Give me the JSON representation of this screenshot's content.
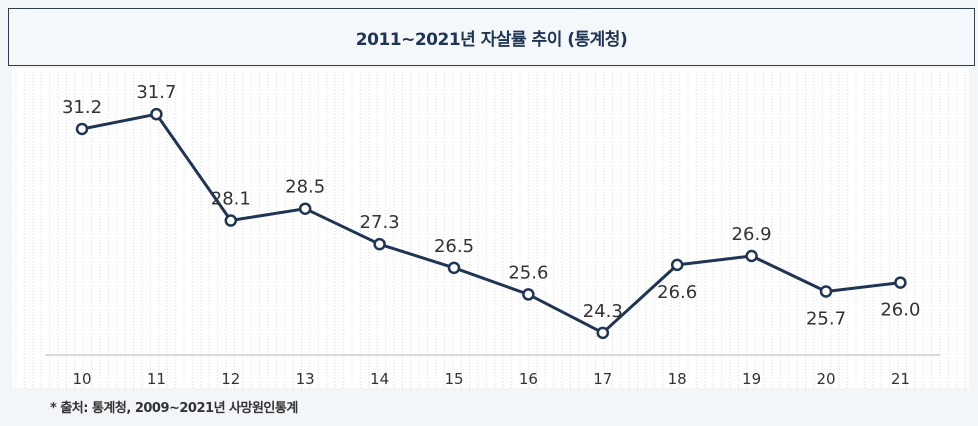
{
  "chart_data": {
    "type": "line",
    "title": "2011~2021년 자살률 추이 (통계청)",
    "categories": [
      "10",
      "11",
      "12",
      "13",
      "14",
      "15",
      "16",
      "17",
      "18",
      "19",
      "20",
      "21"
    ],
    "series": [
      {
        "values": [
          31.2,
          31.7,
          28.1,
          28.5,
          27.3,
          26.5,
          25.6,
          24.3,
          26.6,
          26.9,
          25.7,
          26.0
        ]
      }
    ],
    "data_labels": [
      "31.2",
      "31.7",
      "28.1",
      "28.5",
      "27.3",
      "26.5",
      "25.6",
      "24.3",
      "26.6",
      "26.9",
      "25.7",
      "26.0"
    ],
    "ylim": [
      22.5,
      33.5
    ],
    "grid": "vertical dotted",
    "line_color": "#1f3554",
    "marker_fill": "#ffffff"
  },
  "source_note": "* 출처: 통계청, 2009~2021년 사망원인통계"
}
